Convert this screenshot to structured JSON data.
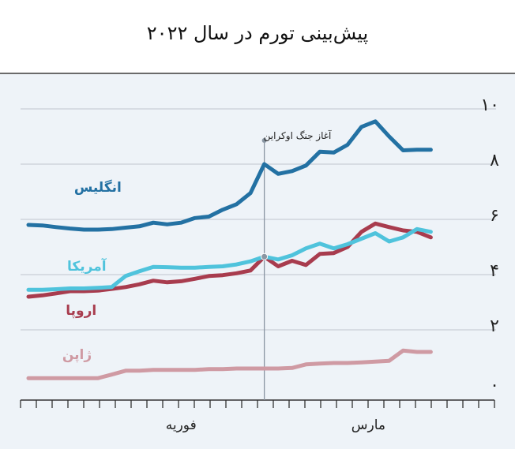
{
  "title": "پیش‌بینی تورم در سال ۲۰۲۲",
  "chart_data": {
    "type": "line",
    "title": "پیش‌بینی تورم در سال ۲۰۲۲",
    "ylim": [
      0,
      10
    ],
    "yticks": [
      {
        "value": 0,
        "label": "۰"
      },
      {
        "value": 2,
        "label": "۲"
      },
      {
        "value": 4,
        "label": "۴"
      },
      {
        "value": 6,
        "label": "۶"
      },
      {
        "value": 8,
        "label": "۸"
      },
      {
        "value": 10,
        "label": "۱۰"
      }
    ],
    "xlim": [
      0,
      30
    ],
    "x_tick_count": 31,
    "xlabels": [
      {
        "x": 11,
        "label": "فوریه"
      },
      {
        "x": 24.5,
        "label": "مارس"
      }
    ],
    "grid": true,
    "annotation": {
      "x": 17,
      "label": "آغاز جنگ اوکراین"
    },
    "series": [
      {
        "name": "انگلیس",
        "color": "#2371a3",
        "label_pos": {
          "x": 5,
          "y": 7.0
        },
        "points": [
          [
            0,
            5.8
          ],
          [
            1,
            5.78
          ],
          [
            2,
            5.72
          ],
          [
            3,
            5.67
          ],
          [
            4,
            5.63
          ],
          [
            5,
            5.63
          ],
          [
            6,
            5.65
          ],
          [
            7,
            5.7
          ],
          [
            8,
            5.75
          ],
          [
            9,
            5.88
          ],
          [
            10,
            5.82
          ],
          [
            11,
            5.88
          ],
          [
            12,
            6.05
          ],
          [
            13,
            6.1
          ],
          [
            14,
            6.35
          ],
          [
            15,
            6.55
          ],
          [
            16,
            6.95
          ],
          [
            17,
            8.0
          ],
          [
            18,
            7.65
          ],
          [
            19,
            7.75
          ],
          [
            20,
            7.95
          ],
          [
            21,
            8.45
          ],
          [
            22,
            8.42
          ],
          [
            23,
            8.7
          ],
          [
            24,
            9.35
          ],
          [
            25,
            9.55
          ],
          [
            26,
            9.0
          ],
          [
            27,
            8.5
          ],
          [
            28,
            8.52
          ],
          [
            29,
            8.52
          ]
        ]
      },
      {
        "name": "آمریکا",
        "color": "#4fc3dc",
        "label_pos": {
          "x": 4.2,
          "y": 4.15
        },
        "points": [
          [
            0,
            3.45
          ],
          [
            1,
            3.45
          ],
          [
            2,
            3.47
          ],
          [
            3,
            3.5
          ],
          [
            4,
            3.5
          ],
          [
            5,
            3.52
          ],
          [
            6,
            3.55
          ],
          [
            7,
            3.95
          ],
          [
            8,
            4.12
          ],
          [
            9,
            4.28
          ],
          [
            10,
            4.27
          ],
          [
            11,
            4.25
          ],
          [
            12,
            4.25
          ],
          [
            13,
            4.28
          ],
          [
            14,
            4.3
          ],
          [
            15,
            4.37
          ],
          [
            16,
            4.48
          ],
          [
            17,
            4.65
          ],
          [
            18,
            4.55
          ],
          [
            19,
            4.7
          ],
          [
            20,
            4.95
          ],
          [
            21,
            5.12
          ],
          [
            22,
            4.95
          ],
          [
            23,
            5.1
          ],
          [
            24,
            5.3
          ],
          [
            25,
            5.5
          ],
          [
            26,
            5.2
          ],
          [
            27,
            5.35
          ],
          [
            28,
            5.65
          ],
          [
            29,
            5.55
          ]
        ]
      },
      {
        "name": "اروپا",
        "color": "#a83c4e",
        "label_pos": {
          "x": 3.8,
          "y": 2.55
        },
        "points": [
          [
            0,
            3.2
          ],
          [
            1,
            3.25
          ],
          [
            2,
            3.32
          ],
          [
            3,
            3.4
          ],
          [
            4,
            3.4
          ],
          [
            5,
            3.42
          ],
          [
            6,
            3.48
          ],
          [
            7,
            3.55
          ],
          [
            8,
            3.65
          ],
          [
            9,
            3.78
          ],
          [
            10,
            3.72
          ],
          [
            11,
            3.76
          ],
          [
            12,
            3.85
          ],
          [
            13,
            3.95
          ],
          [
            14,
            3.98
          ],
          [
            15,
            4.05
          ],
          [
            16,
            4.15
          ],
          [
            17,
            4.65
          ],
          [
            18,
            4.3
          ],
          [
            19,
            4.5
          ],
          [
            20,
            4.35
          ],
          [
            21,
            4.75
          ],
          [
            22,
            4.78
          ],
          [
            23,
            5.0
          ],
          [
            24,
            5.55
          ],
          [
            25,
            5.85
          ],
          [
            26,
            5.72
          ],
          [
            27,
            5.6
          ],
          [
            28,
            5.55
          ],
          [
            29,
            5.35
          ]
        ]
      },
      {
        "name": "ژاپن",
        "color": "#cf9aa3",
        "label_pos": {
          "x": 3.5,
          "y": 0.95
        },
        "points": [
          [
            0,
            0.25
          ],
          [
            1,
            0.25
          ],
          [
            2,
            0.25
          ],
          [
            3,
            0.25
          ],
          [
            4,
            0.25
          ],
          [
            5,
            0.25
          ],
          [
            6,
            0.38
          ],
          [
            7,
            0.52
          ],
          [
            8,
            0.52
          ],
          [
            9,
            0.55
          ],
          [
            10,
            0.55
          ],
          [
            11,
            0.55
          ],
          [
            12,
            0.55
          ],
          [
            13,
            0.58
          ],
          [
            14,
            0.58
          ],
          [
            15,
            0.6
          ],
          [
            16,
            0.6
          ],
          [
            17,
            0.6
          ],
          [
            18,
            0.6
          ],
          [
            19,
            0.62
          ],
          [
            20,
            0.75
          ],
          [
            21,
            0.78
          ],
          [
            22,
            0.8
          ],
          [
            23,
            0.8
          ],
          [
            24,
            0.82
          ],
          [
            25,
            0.85
          ],
          [
            26,
            0.88
          ],
          [
            27,
            1.25
          ],
          [
            28,
            1.2
          ],
          [
            29,
            1.2
          ]
        ]
      }
    ]
  }
}
